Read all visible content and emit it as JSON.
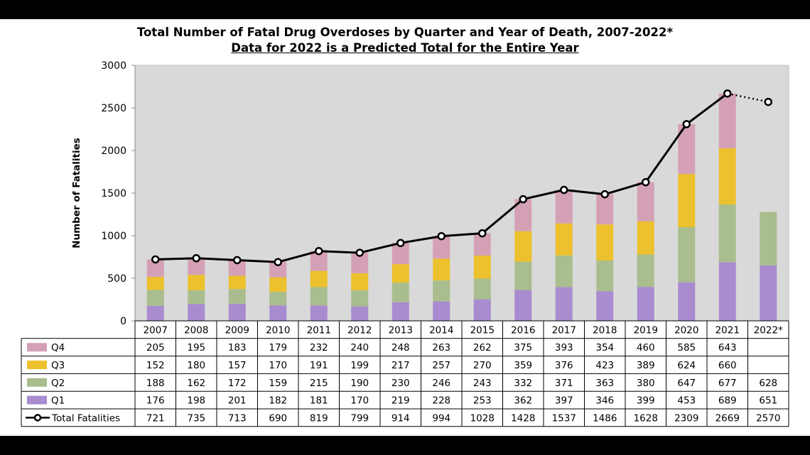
{
  "chart_data": {
    "type": "bar",
    "stacked": true,
    "title": "Total Number of Fatal Drug Overdoses by Quarter and Year of Death, 2007-2022*",
    "subtitle": "Data for 2022 is a Predicted Total for the Entire Year",
    "ylabel": "Number of Fatalities",
    "ylim": [
      0,
      3000
    ],
    "yticks": [
      0,
      500,
      1000,
      1500,
      2000,
      2500,
      3000
    ],
    "grid": false,
    "legend": "data-table",
    "categories": [
      "2007",
      "2008",
      "2009",
      "2010",
      "2011",
      "2012",
      "2013",
      "2014",
      "2015",
      "2016",
      "2017",
      "2018",
      "2019",
      "2020",
      "2021",
      "2022*"
    ],
    "series": [
      {
        "name": "Q4",
        "color": "#d4a0b6",
        "values": [
          205,
          195,
          183,
          179,
          232,
          240,
          248,
          263,
          262,
          375,
          393,
          354,
          460,
          585,
          643,
          null
        ]
      },
      {
        "name": "Q3",
        "color": "#ecc12d",
        "values": [
          152,
          180,
          157,
          170,
          191,
          199,
          217,
          257,
          270,
          359,
          376,
          423,
          389,
          624,
          660,
          null
        ]
      },
      {
        "name": "Q2",
        "color": "#a9bd8e",
        "values": [
          188,
          162,
          172,
          159,
          215,
          190,
          230,
          246,
          243,
          332,
          371,
          363,
          380,
          647,
          677,
          628
        ]
      },
      {
        "name": "Q1",
        "color": "#a98bd0",
        "values": [
          176,
          198,
          201,
          182,
          181,
          170,
          219,
          228,
          253,
          362,
          397,
          346,
          399,
          453,
          689,
          651
        ]
      }
    ],
    "line": {
      "name": "Total Fatalities",
      "color": "#000000",
      "values": [
        721,
        735,
        713,
        690,
        819,
        799,
        914,
        994,
        1028,
        1428,
        1537,
        1486,
        1628,
        2309,
        2669,
        2570
      ]
    },
    "plot_background": "#d9d9d9"
  }
}
